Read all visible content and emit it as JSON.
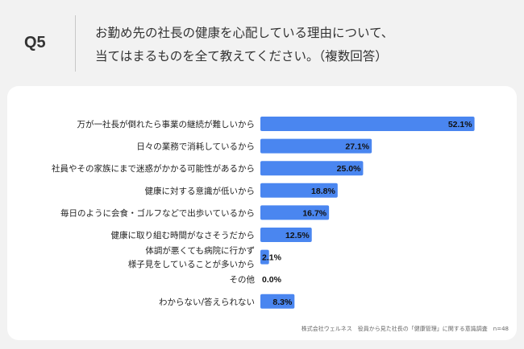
{
  "question": {
    "number": "Q5",
    "lines": [
      "お勤め先の社長の健康を心配している理由について、",
      "当てはまるものを全て教えてください。（複数回答）"
    ]
  },
  "chart_data": {
    "type": "bar",
    "orientation": "horizontal",
    "categories": [
      [
        "万が一社長が倒れたら事業の継続が難しいから"
      ],
      [
        "日々の業務で消耗しているから"
      ],
      [
        "社員やその家族にまで迷惑がかかる可能性があるから"
      ],
      [
        "健康に対する意識が低いから"
      ],
      [
        "毎日のように会食・ゴルフなどで出歩いているから"
      ],
      [
        "健康に取り組む時間がなさそうだから"
      ],
      [
        "体調が悪くても病院に行かず",
        "様子見をしていることが多いから"
      ],
      [
        "その他"
      ],
      [
        "わからない/答えられない"
      ]
    ],
    "values": [
      52.1,
      27.1,
      25.0,
      18.8,
      16.7,
      12.5,
      2.1,
      0.0,
      8.3
    ],
    "value_labels": [
      "52.1%",
      "27.1%",
      "25.0%",
      "18.8%",
      "16.7%",
      "12.5%",
      "2.1%",
      "0.0%",
      "8.3%"
    ],
    "bar_color": "#4a86f0",
    "xlim": [
      0,
      60
    ]
  },
  "footnote": "株式会社ウェルネス　役員から見た社長の「健康管理」に関する意識調査　n=48"
}
